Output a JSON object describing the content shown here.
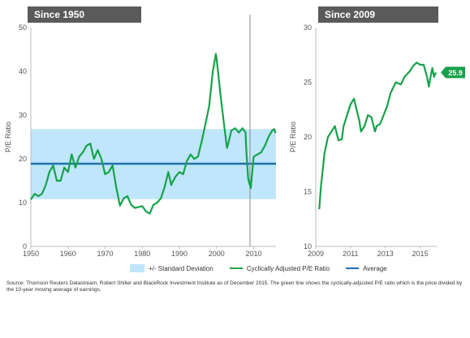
{
  "colors": {
    "band": "#bfe6fb",
    "cape": "#16a24a",
    "average": "#1f6fad",
    "title_bg": "#5a5a5a",
    "axis": "#bbbbbb",
    "recession_line": "#888888"
  },
  "panels": {
    "left_title": "Since 1950",
    "right_title": "Since 2009"
  },
  "legend": {
    "band_label": "+/- Standard Deviation",
    "cape_label": "Cyclically Adjusted P/E Ratio",
    "average_label": "Average"
  },
  "source": "Source: Thomson Reuters Datastream, Robert Shiller and BlackRock Investment Institute as of December 2015.  The green line shows the cyclically-adjusted P/E ratio which is the price divided by the 10-year moving average of earnings.",
  "chart_data": [
    {
      "type": "line",
      "title": "Since 1950",
      "ylabel": "P/E Ratio",
      "xlim": [
        1950,
        2016
      ],
      "ylim": [
        0,
        50
      ],
      "x_ticks": [
        1950,
        1960,
        1970,
        1980,
        1990,
        2000,
        2010
      ],
      "y_ticks": [
        0,
        10,
        20,
        30,
        40,
        50
      ],
      "grid": false,
      "band": {
        "low": 10.8,
        "high": 26.8,
        "label": "+/- Standard Deviation"
      },
      "average": 18.9,
      "vertical_marker_x": 2009,
      "series": [
        {
          "name": "Cyclically Adjusted P/E Ratio",
          "x": [
            1950,
            1951,
            1952,
            1953,
            1954,
            1955,
            1956,
            1957,
            1958,
            1959,
            1960,
            1961,
            1962,
            1963,
            1964,
            1965,
            1966,
            1967,
            1968,
            1969,
            1970,
            1971,
            1972,
            1973,
            1974,
            1975,
            1976,
            1977,
            1978,
            1979,
            1980,
            1981,
            1982,
            1983,
            1984,
            1985,
            1986,
            1987,
            1987.8,
            1988,
            1989,
            1990,
            1991,
            1992,
            1993,
            1994,
            1995,
            1996,
            1997,
            1998,
            1999,
            1999.8,
            2000,
            2001,
            2002,
            2002.8,
            2003,
            2004,
            2005,
            2006,
            2007,
            2007.8,
            2008,
            2008.5,
            2009.2,
            2010,
            2011,
            2012,
            2013,
            2014,
            2015,
            2015.5,
            2015.9
          ],
          "y": [
            10.7,
            12,
            11.5,
            12,
            14,
            17,
            18.5,
            15,
            15,
            18,
            17,
            21,
            18,
            20.5,
            21.5,
            23,
            23.5,
            20,
            22,
            20,
            16.5,
            17,
            18.5,
            13.5,
            9.3,
            11,
            11.5,
            9.5,
            8.8,
            9,
            9.2,
            8,
            7.5,
            9.5,
            10,
            11,
            13.5,
            17,
            14,
            14.5,
            16,
            17,
            16.5,
            19.5,
            21,
            20,
            20.5,
            24,
            28,
            32,
            40,
            44,
            43,
            35,
            28,
            22.5,
            23,
            26.5,
            27,
            26,
            27,
            26,
            22,
            15.5,
            13.3,
            20.5,
            21,
            21.5,
            23,
            25,
            26.5,
            26.8,
            25.9
          ]
        }
      ]
    },
    {
      "type": "line",
      "title": "Since 2009",
      "ylabel": "P/E Ratio",
      "xlim": [
        2009,
        2016
      ],
      "ylim": [
        10,
        30
      ],
      "x_ticks": [
        2009,
        2011,
        2013,
        2015
      ],
      "y_ticks": [
        10,
        15,
        20,
        25,
        30
      ],
      "grid": false,
      "end_label": "25.9",
      "series": [
        {
          "name": "Cyclically Adjusted P/E Ratio",
          "x": [
            2009.2,
            2009.3,
            2009.4,
            2009.5,
            2009.7,
            2009.9,
            2010.1,
            2010.3,
            2010.5,
            2010.6,
            2010.8,
            2011,
            2011.2,
            2011.3,
            2011.5,
            2011.6,
            2011.8,
            2012,
            2012.2,
            2012.4,
            2012.5,
            2012.7,
            2012.9,
            2013.1,
            2013.3,
            2013.6,
            2013.9,
            2014.1,
            2014.4,
            2014.6,
            2014.8,
            2015,
            2015.2,
            2015.4,
            2015.5,
            2015.6,
            2015.7,
            2015.8,
            2015.9
          ],
          "y": [
            13.4,
            15.5,
            17,
            18.5,
            20,
            20.5,
            21,
            19.7,
            19.8,
            21,
            22,
            23,
            23.5,
            22.8,
            21.5,
            20.5,
            21,
            22,
            21.8,
            20.5,
            21,
            21.2,
            22,
            22.8,
            24,
            25,
            24.8,
            25.5,
            26,
            26.5,
            26.8,
            26.6,
            26.6,
            25.5,
            24.6,
            25.5,
            26.3,
            25.5,
            25.9
          ]
        }
      ]
    }
  ]
}
